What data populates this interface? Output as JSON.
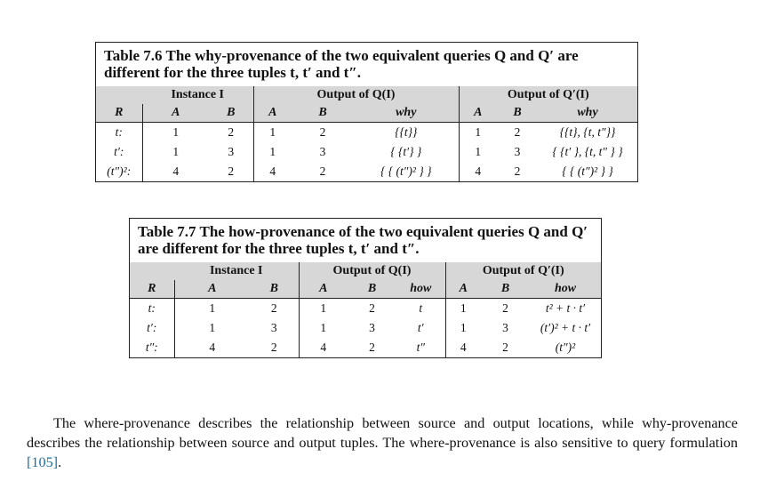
{
  "table76": {
    "caption_num": "Table 7.6",
    "caption_text": "The why-provenance of the two equivalent queries Q and Q′ are different for the three tuples t, t′ and t″.",
    "groups": [
      "Instance I",
      "Output of Q(I)",
      "Output of Q′(I)"
    ],
    "columns": [
      "R",
      "A",
      "B",
      "A",
      "B",
      "why",
      "A",
      "B",
      "why"
    ],
    "rows": [
      [
        "t:",
        "1",
        "2",
        "1",
        "2",
        "{{t}}",
        "1",
        "2",
        "{{t}, {t, t″}}"
      ],
      [
        "t′:",
        "1",
        "3",
        "1",
        "3",
        "{ {t′} }",
        "1",
        "3",
        "{ {t′ }, {t, t″ } }"
      ],
      [
        "(t″)²:",
        "4",
        "2",
        "4",
        "2",
        "{ { (t″)² } }",
        "4",
        "2",
        "{ { (t″)² } }"
      ]
    ]
  },
  "table77": {
    "caption_num": "Table 7.7",
    "caption_text": "The how-provenance of the two equivalent queries Q and Q′ are different for the three tuples t, t′ and t″.",
    "groups": [
      "Instance I",
      "Output of Q(I)",
      "Output of Q′(I)"
    ],
    "columns": [
      "R",
      "A",
      "B",
      "A",
      "B",
      "how",
      "A",
      "B",
      "how"
    ],
    "rows": [
      [
        "t:",
        "1",
        "2",
        "1",
        "2",
        "t",
        "1",
        "2",
        "t² + t · t′"
      ],
      [
        "t′:",
        "1",
        "3",
        "1",
        "3",
        "t′",
        "1",
        "3",
        "(t′)² + t · t′"
      ],
      [
        "t″:",
        "4",
        "2",
        "4",
        "2",
        "t″",
        "4",
        "2",
        "(t″)²"
      ]
    ]
  },
  "paragraph": {
    "text_before": "The where-provenance describes the relationship between source and output locations, while why-provenance describes the relationship between source and output tuples. The where-provenance is also sensitive to query formulation ",
    "citation": "[105]",
    "text_after": "."
  }
}
